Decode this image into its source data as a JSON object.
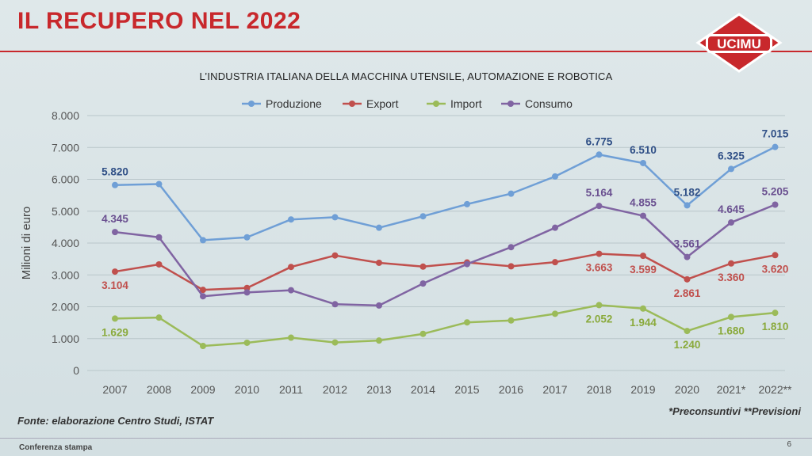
{
  "slide": {
    "title": "IL RECUPERO NEL 2022",
    "logo_text": "UCIMU",
    "source": "Fonte: elaborazione Centro Studi, ISTAT",
    "note": "*Preconsuntivi **Previsioni",
    "footer": "Conferenza stampa",
    "page_number": "6",
    "accent_color": "#c8282c"
  },
  "chart_data": {
    "type": "line",
    "title": "L’INDUSTRIA ITALIANA DELLA MACCHINA UTENSILE, AUTOMAZIONE E ROBOTICA",
    "ylabel": "Milioni di euro",
    "xlabel": "",
    "ylim": [
      0,
      8000
    ],
    "yticks": [
      "0",
      "1.000",
      "2.000",
      "3.000",
      "4.000",
      "5.000",
      "6.000",
      "7.000",
      "8.000"
    ],
    "grid": true,
    "legend_position": "top",
    "categories": [
      "2007",
      "2008",
      "2009",
      "2010",
      "2011",
      "2012",
      "2013",
      "2014",
      "2015",
      "2016",
      "2017",
      "2018",
      "2019",
      "2020",
      "2021*",
      "2022**"
    ],
    "series": [
      {
        "name": "Produzione",
        "color": "#6f9fd6",
        "label_color": "#2f4f86",
        "values": [
          5820,
          5850,
          4090,
          4180,
          4740,
          4810,
          4480,
          4840,
          5220,
          5550,
          6090,
          6775,
          6510,
          5182,
          6325,
          7015
        ],
        "labels": [
          {
            "index": 0,
            "text": "5.820",
            "pos": "above"
          },
          {
            "index": 11,
            "text": "6.775",
            "pos": "above"
          },
          {
            "index": 12,
            "text": "6.510",
            "pos": "above"
          },
          {
            "index": 13,
            "text": "5.182",
            "pos": "above"
          },
          {
            "index": 14,
            "text": "6.325",
            "pos": "above"
          },
          {
            "index": 15,
            "text": "7.015",
            "pos": "above"
          }
        ]
      },
      {
        "name": "Export",
        "color": "#c0504d",
        "label_color": "#c0504d",
        "values": [
          3104,
          3330,
          2530,
          2590,
          3250,
          3610,
          3380,
          3260,
          3390,
          3270,
          3400,
          3663,
          3599,
          2861,
          3360,
          3620
        ],
        "labels": [
          {
            "index": 0,
            "text": "3.104",
            "pos": "below"
          },
          {
            "index": 11,
            "text": "3.663",
            "pos": "below"
          },
          {
            "index": 12,
            "text": "3.599",
            "pos": "below"
          },
          {
            "index": 13,
            "text": "2.861",
            "pos": "below"
          },
          {
            "index": 14,
            "text": "3.360",
            "pos": "below"
          },
          {
            "index": 15,
            "text": "3.620",
            "pos": "below"
          }
        ]
      },
      {
        "name": "Import",
        "color": "#9bbb59",
        "label_color": "#8aaa3c",
        "values": [
          1629,
          1660,
          770,
          870,
          1030,
          880,
          940,
          1150,
          1510,
          1570,
          1780,
          2052,
          1944,
          1240,
          1680,
          1810
        ],
        "labels": [
          {
            "index": 0,
            "text": "1.629",
            "pos": "below"
          },
          {
            "index": 11,
            "text": "2.052",
            "pos": "below"
          },
          {
            "index": 12,
            "text": "1.944",
            "pos": "below"
          },
          {
            "index": 13,
            "text": "1.240",
            "pos": "below"
          },
          {
            "index": 14,
            "text": "1.680",
            "pos": "below"
          },
          {
            "index": 15,
            "text": "1.810",
            "pos": "below"
          }
        ]
      },
      {
        "name": "Consumo",
        "color": "#8064a2",
        "label_color": "#6a5090",
        "values": [
          4345,
          4180,
          2330,
          2450,
          2520,
          2080,
          2040,
          2730,
          3340,
          3870,
          4480,
          5164,
          4855,
          3561,
          4645,
          5205
        ],
        "labels": [
          {
            "index": 0,
            "text": "4.345",
            "pos": "above"
          },
          {
            "index": 11,
            "text": "5.164",
            "pos": "above"
          },
          {
            "index": 12,
            "text": "4.855",
            "pos": "above"
          },
          {
            "index": 13,
            "text": "3.561",
            "pos": "above"
          },
          {
            "index": 14,
            "text": "4.645",
            "pos": "above"
          },
          {
            "index": 15,
            "text": "5.205",
            "pos": "above"
          }
        ]
      }
    ]
  }
}
